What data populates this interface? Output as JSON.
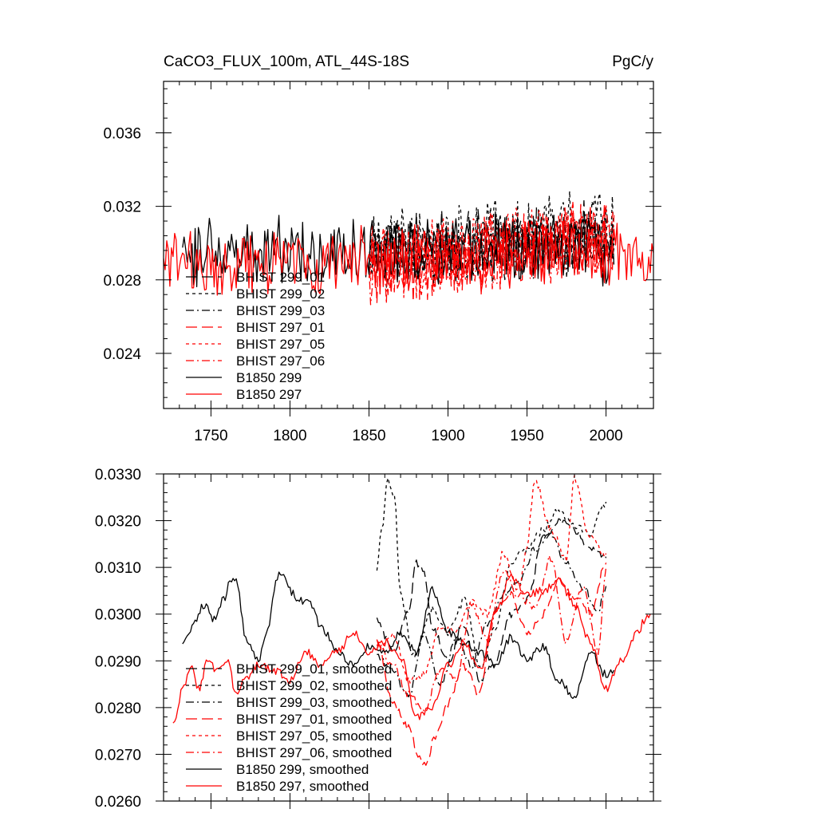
{
  "chart_data": [
    {
      "type": "line",
      "title_left": "CaCO3_FLUX_100m, ATL_44S-18S",
      "title_right": "PgC/y",
      "xlabel": "",
      "ylabel": "",
      "xlim": [
        1720,
        2030
      ],
      "ylim": [
        0.021,
        0.0388
      ],
      "x_ticks": [
        1750,
        1800,
        1850,
        1900,
        1950,
        2000
      ],
      "x_tick_labels": [
        "1750",
        "1800",
        "1850",
        "1900",
        "1950",
        "2000"
      ],
      "y_ticks": [
        0.024,
        0.028,
        0.032,
        0.036
      ],
      "y_tick_labels": [
        "0.024",
        "0.028",
        "0.032",
        "0.036"
      ],
      "grid": false,
      "legend_position": "lower-left",
      "series": [
        {
          "name": "BHIST 299_01",
          "color": "#000000",
          "dash": "long-dash",
          "x_start": 1850,
          "x_end": 2005,
          "mean": 0.0295,
          "amp": 0.0022,
          "trend": 0.0008
        },
        {
          "name": "BHIST 299_02",
          "color": "#000000",
          "dash": "dot",
          "x_start": 1850,
          "x_end": 2005,
          "mean": 0.0298,
          "amp": 0.0024,
          "trend": 0.0012
        },
        {
          "name": "BHIST 299_03",
          "color": "#000000",
          "dash": "dash-dot",
          "x_start": 1850,
          "x_end": 2005,
          "mean": 0.0292,
          "amp": 0.0022,
          "trend": 0.001
        },
        {
          "name": "BHIST 297_01",
          "color": "#ff0000",
          "dash": "long-dash",
          "x_start": 1850,
          "x_end": 2005,
          "mean": 0.0285,
          "amp": 0.0024,
          "trend": 0.0018
        },
        {
          "name": "BHIST 297_05",
          "color": "#ff0000",
          "dash": "dot",
          "x_start": 1850,
          "x_end": 2005,
          "mean": 0.0288,
          "amp": 0.0026,
          "trend": 0.0018
        },
        {
          "name": "BHIST 297_06",
          "color": "#ff0000",
          "dash": "dash-dot",
          "x_start": 1850,
          "x_end": 2005,
          "mean": 0.0287,
          "amp": 0.0024,
          "trend": 0.0016
        },
        {
          "name": "B1850 299",
          "color": "#000000",
          "dash": "solid",
          "x_start": 1732,
          "x_end": 2005,
          "mean": 0.0295,
          "amp": 0.0022,
          "trend": 0.0002
        },
        {
          "name": "B1850 297",
          "color": "#ff0000",
          "dash": "solid",
          "x_start": 1720,
          "x_end": 2030,
          "mean": 0.0288,
          "amp": 0.002,
          "trend": 0.0006
        }
      ]
    },
    {
      "type": "line",
      "title_left": "",
      "title_right": "",
      "xlabel": "",
      "ylabel": "",
      "xlim": [
        1720,
        2030
      ],
      "ylim": [
        0.026,
        0.033
      ],
      "x_ticks": [
        1750,
        1800,
        1850,
        1900,
        1950,
        2000
      ],
      "x_tick_labels": [
        "",
        "",
        "",
        "",
        "",
        ""
      ],
      "y_ticks": [
        0.026,
        0.027,
        0.028,
        0.029,
        0.03,
        0.031,
        0.032,
        0.033
      ],
      "y_tick_labels": [
        "0.0260",
        "0.0270",
        "0.0280",
        "0.0290",
        "0.0300",
        "0.0310",
        "0.0320",
        "0.0330"
      ],
      "grid": false,
      "legend_position": "lower-left",
      "series": [
        {
          "name": "BHIST 299_01, smoothed",
          "color": "#000000",
          "dash": "long-dash",
          "x": [
            1855,
            1865,
            1875,
            1880,
            1885,
            1890,
            1900,
            1910,
            1920,
            1930,
            1940,
            1950,
            1960,
            1970,
            1980,
            1990,
            2000
          ],
          "y": [
            0.0299,
            0.0292,
            0.03,
            0.0311,
            0.0309,
            0.0297,
            0.029,
            0.0298,
            0.0286,
            0.029,
            0.03,
            0.0303,
            0.0316,
            0.032,
            0.0318,
            0.0314,
            0.0312
          ]
        },
        {
          "name": "BHIST 299_02, smoothed",
          "color": "#000000",
          "dash": "dot",
          "x": [
            1855,
            1858,
            1862,
            1866,
            1870,
            1878,
            1890,
            1900,
            1911,
            1920,
            1930,
            1940,
            1950,
            1960,
            1970,
            1980,
            1990,
            2000
          ],
          "y": [
            0.0309,
            0.0318,
            0.0329,
            0.0325,
            0.0304,
            0.0291,
            0.0301,
            0.0296,
            0.0303,
            0.0288,
            0.0297,
            0.0311,
            0.0314,
            0.0318,
            0.0322,
            0.0319,
            0.0317,
            0.0324
          ]
        },
        {
          "name": "BHIST 299_03, smoothed",
          "color": "#000000",
          "dash": "dash-dot",
          "x": [
            1855,
            1865,
            1875,
            1885,
            1895,
            1905,
            1915,
            1925,
            1935,
            1945,
            1955,
            1965,
            1975,
            1985,
            1995,
            2000
          ],
          "y": [
            0.0291,
            0.0288,
            0.0282,
            0.0296,
            0.0285,
            0.0294,
            0.0289,
            0.0298,
            0.0304,
            0.0307,
            0.0314,
            0.0317,
            0.0311,
            0.0306,
            0.0301,
            0.0306
          ]
        },
        {
          "name": "BHIST 297_01, smoothed",
          "color": "#ff0000",
          "dash": "long-dash",
          "x": [
            1855,
            1865,
            1875,
            1882,
            1886,
            1892,
            1900,
            1910,
            1920,
            1930,
            1940,
            1950,
            1960,
            1970,
            1980,
            1990,
            2000
          ],
          "y": [
            0.0294,
            0.0281,
            0.0276,
            0.0269,
            0.0268,
            0.0274,
            0.0281,
            0.0289,
            0.0283,
            0.0301,
            0.0304,
            0.0296,
            0.03,
            0.0307,
            0.0304,
            0.03,
            0.0311
          ]
        },
        {
          "name": "BHIST 297_05, smoothed",
          "color": "#ff0000",
          "dash": "dot",
          "x": [
            1855,
            1865,
            1875,
            1885,
            1895,
            1905,
            1915,
            1925,
            1935,
            1945,
            1950,
            1955,
            1965,
            1975,
            1980,
            1990,
            2000
          ],
          "y": [
            0.0293,
            0.0296,
            0.0286,
            0.0287,
            0.0297,
            0.0296,
            0.0303,
            0.03,
            0.0313,
            0.0305,
            0.0315,
            0.0329,
            0.0318,
            0.0312,
            0.0329,
            0.0316,
            0.0313
          ]
        },
        {
          "name": "BHIST 297_06, smoothed",
          "color": "#ff0000",
          "dash": "dash-dot",
          "x": [
            1855,
            1865,
            1875,
            1885,
            1895,
            1905,
            1915,
            1925,
            1935,
            1945,
            1955,
            1965,
            1975,
            1985,
            1995,
            2000
          ],
          "y": [
            0.0294,
            0.0289,
            0.0283,
            0.0279,
            0.0288,
            0.0286,
            0.0302,
            0.0294,
            0.0309,
            0.0304,
            0.0301,
            0.0312,
            0.0294,
            0.0306,
            0.0292,
            0.031
          ]
        },
        {
          "name": "B1850 299, smoothed",
          "color": "#000000",
          "dash": "solid",
          "x": [
            1732,
            1738,
            1745,
            1752,
            1758,
            1762,
            1766,
            1772,
            1780,
            1786,
            1792,
            1796,
            1800,
            1805,
            1812,
            1820,
            1830,
            1840,
            1850,
            1860,
            1870,
            1880,
            1890,
            1900,
            1910,
            1920,
            1930,
            1940,
            1950,
            1960,
            1970,
            1980,
            1990,
            2000,
            2005
          ],
          "y": [
            0.0293,
            0.0297,
            0.0302,
            0.0299,
            0.0303,
            0.0307,
            0.0307,
            0.0295,
            0.029,
            0.0297,
            0.0308,
            0.0309,
            0.0305,
            0.0303,
            0.0303,
            0.0297,
            0.0292,
            0.0289,
            0.0293,
            0.0292,
            0.0296,
            0.0292,
            0.0305,
            0.0296,
            0.0294,
            0.0292,
            0.0289,
            0.0295,
            0.029,
            0.0293,
            0.0286,
            0.0282,
            0.0292,
            0.0287,
            0.0288
          ]
        },
        {
          "name": "B1850 297, smoothed",
          "color": "#ff0000",
          "dash": "solid",
          "x": [
            1726,
            1732,
            1738,
            1742,
            1748,
            1754,
            1760,
            1766,
            1772,
            1780,
            1790,
            1800,
            1810,
            1820,
            1830,
            1840,
            1850,
            1860,
            1870,
            1880,
            1890,
            1900,
            1910,
            1920,
            1930,
            1940,
            1950,
            1960,
            1970,
            1980,
            1990,
            2000,
            2010,
            2020,
            2025,
            2028
          ],
          "y": [
            0.0276,
            0.0284,
            0.0289,
            0.0284,
            0.029,
            0.0288,
            0.029,
            0.0283,
            0.0286,
            0.0289,
            0.0288,
            0.0286,
            0.0292,
            0.0289,
            0.0292,
            0.0296,
            0.0292,
            0.0294,
            0.0291,
            0.0278,
            0.028,
            0.0289,
            0.0294,
            0.0288,
            0.03,
            0.0308,
            0.0304,
            0.0305,
            0.0307,
            0.0302,
            0.0294,
            0.0284,
            0.029,
            0.0296,
            0.0299,
            0.03
          ]
        }
      ]
    }
  ]
}
